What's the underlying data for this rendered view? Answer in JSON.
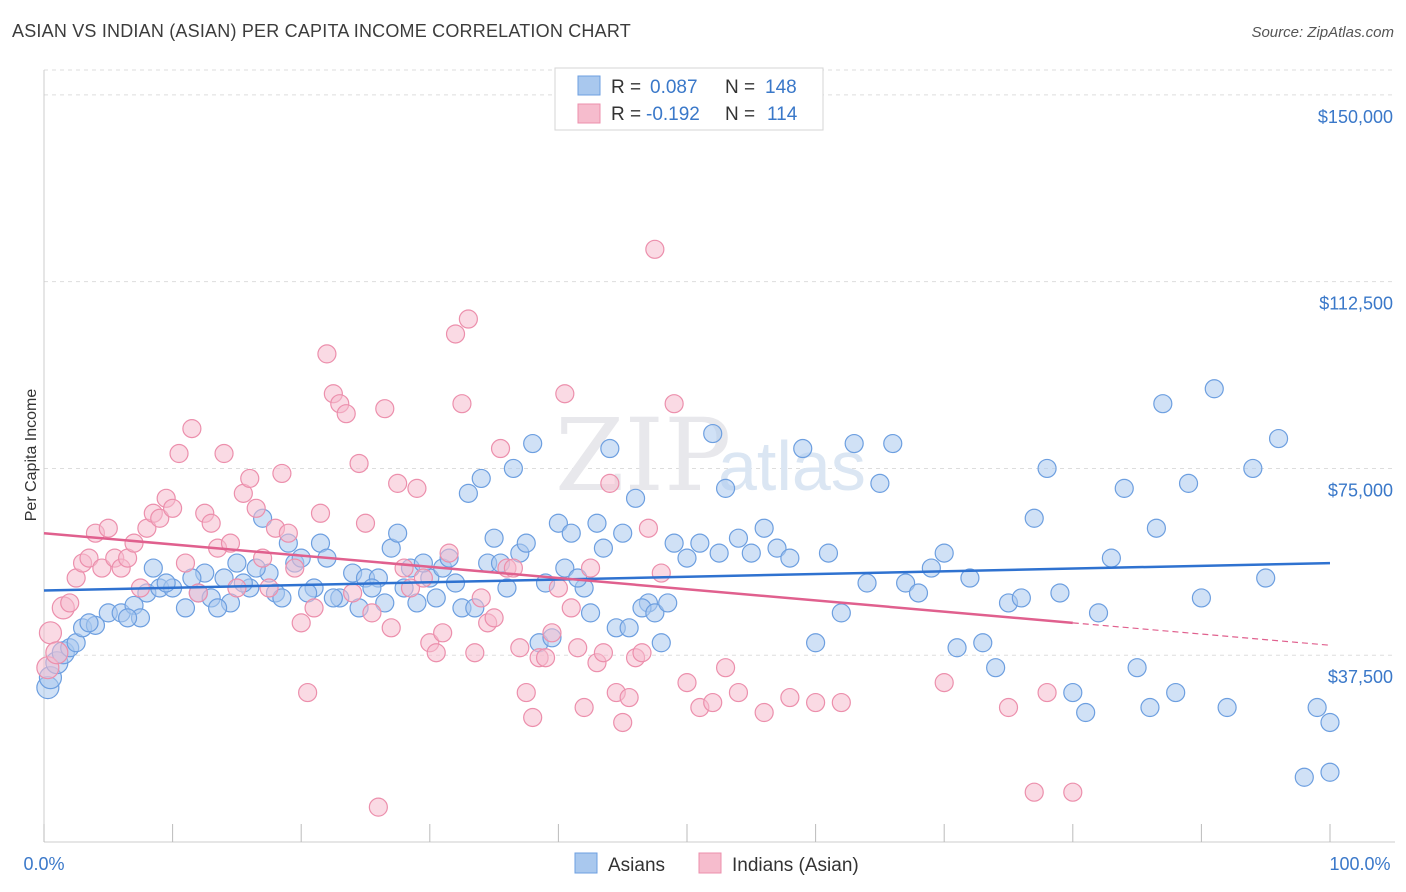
{
  "header": {
    "title": "ASIAN VS INDIAN (ASIAN) PER CAPITA INCOME CORRELATION CHART",
    "source": "Source: ZipAtlas.com"
  },
  "watermark": {
    "zip": "ZIP",
    "atlas": "atlas"
  },
  "legend": {
    "rows": [
      {
        "r_label": "R =",
        "r_value": "0.087",
        "n_label": "N =",
        "n_value": "148"
      },
      {
        "r_label": "R =",
        "r_value": "-0.192",
        "n_label": "N =",
        "n_value": "114"
      }
    ]
  },
  "bottom_legend": [
    "Asians",
    "Indians (Asian)"
  ],
  "colors": {
    "asians_fill": "#a9c8ee",
    "asians_stroke": "#6d9fe0",
    "asians_line": "#2f72d0",
    "indians_fill": "#f6bccd",
    "indians_stroke": "#ec8fac",
    "indians_line": "#e0608e",
    "grid": "#dddddd",
    "tick_text": "#3a78c9"
  },
  "chart_data": {
    "type": "scatter",
    "title": "ASIAN VS INDIAN (ASIAN) PER CAPITA INCOME CORRELATION CHART",
    "xlabel": "",
    "ylabel": "Per Capita Income",
    "xlim": [
      0,
      100
    ],
    "ylim": [
      0,
      155000
    ],
    "x_tick_labels": [
      "0.0%",
      "100.0%"
    ],
    "y_ticks": [
      37500,
      75000,
      112500,
      150000
    ],
    "y_tick_labels": [
      "$37,500",
      "$75,000",
      "$112,500",
      "$150,000"
    ],
    "grid": true,
    "legend_position": "top-center",
    "series": [
      {
        "name": "Asians",
        "r": 0.087,
        "n": 148,
        "trend": {
          "x": [
            0,
            100
          ],
          "y": [
            50500,
            56000
          ]
        },
        "points": [
          [
            0.3,
            31000
          ],
          [
            0.5,
            33000
          ],
          [
            1,
            36000
          ],
          [
            1.5,
            38000
          ],
          [
            2,
            39000
          ],
          [
            2.5,
            40000
          ],
          [
            3,
            43000
          ],
          [
            4,
            43500
          ],
          [
            5,
            46000
          ],
          [
            6,
            46000
          ],
          [
            7,
            47500
          ],
          [
            7.5,
            45000
          ],
          [
            8,
            50000
          ],
          [
            9,
            51000
          ],
          [
            10,
            51000
          ],
          [
            11,
            47000
          ],
          [
            12,
            50000
          ],
          [
            12.5,
            54000
          ],
          [
            13,
            49000
          ],
          [
            14,
            53000
          ],
          [
            14.5,
            48000
          ],
          [
            15,
            56000
          ],
          [
            16,
            51000
          ],
          [
            17,
            65000
          ],
          [
            17.5,
            54000
          ],
          [
            18,
            50000
          ],
          [
            19,
            60000
          ],
          [
            19.5,
            56000
          ],
          [
            20,
            57000
          ],
          [
            21,
            51000
          ],
          [
            21.5,
            60000
          ],
          [
            22,
            57000
          ],
          [
            23,
            49000
          ],
          [
            24,
            54000
          ],
          [
            25,
            53000
          ],
          [
            26,
            53000
          ],
          [
            27,
            59000
          ],
          [
            27.5,
            62000
          ],
          [
            28,
            51000
          ],
          [
            29,
            48000
          ],
          [
            30,
            53000
          ],
          [
            31,
            55000
          ],
          [
            31.5,
            57000
          ],
          [
            32,
            52000
          ],
          [
            33,
            70000
          ],
          [
            34,
            73000
          ],
          [
            34.5,
            56000
          ],
          [
            35,
            61000
          ],
          [
            36,
            51000
          ],
          [
            36.5,
            75000
          ],
          [
            37,
            58000
          ],
          [
            38,
            80000
          ],
          [
            38.5,
            40000
          ],
          [
            39,
            52000
          ],
          [
            40,
            64000
          ],
          [
            41,
            62000
          ],
          [
            42,
            51000
          ],
          [
            43,
            64000
          ],
          [
            43.5,
            59000
          ],
          [
            44,
            79000
          ],
          [
            45,
            62000
          ],
          [
            46,
            69000
          ],
          [
            47,
            48000
          ],
          [
            48,
            40000
          ],
          [
            49,
            60000
          ],
          [
            50,
            57000
          ],
          [
            51,
            60000
          ],
          [
            52,
            82000
          ],
          [
            52.5,
            58000
          ],
          [
            53,
            71000
          ],
          [
            54,
            61000
          ],
          [
            55,
            58000
          ],
          [
            56,
            63000
          ],
          [
            57,
            59000
          ],
          [
            58,
            57000
          ],
          [
            59,
            79000
          ],
          [
            60,
            40000
          ],
          [
            61,
            58000
          ],
          [
            62,
            46000
          ],
          [
            63,
            80000
          ],
          [
            64,
            52000
          ],
          [
            65,
            72000
          ],
          [
            66,
            80000
          ],
          [
            67,
            52000
          ],
          [
            68,
            50000
          ],
          [
            69,
            55000
          ],
          [
            70,
            58000
          ],
          [
            71,
            39000
          ],
          [
            72,
            53000
          ],
          [
            73,
            40000
          ],
          [
            74,
            35000
          ],
          [
            75,
            48000
          ],
          [
            76,
            49000
          ],
          [
            77,
            65000
          ],
          [
            78,
            75000
          ],
          [
            79,
            50000
          ],
          [
            80,
            30000
          ],
          [
            81,
            26000
          ],
          [
            82,
            46000
          ],
          [
            83,
            57000
          ],
          [
            84,
            71000
          ],
          [
            85,
            35000
          ],
          [
            86,
            27000
          ],
          [
            86.5,
            63000
          ],
          [
            87,
            88000
          ],
          [
            88,
            30000
          ],
          [
            89,
            72000
          ],
          [
            90,
            49000
          ],
          [
            91,
            91000
          ],
          [
            92,
            27000
          ],
          [
            94,
            75000
          ],
          [
            95,
            53000
          ],
          [
            96,
            81000
          ],
          [
            98,
            13000
          ],
          [
            99,
            27000
          ],
          [
            100,
            14000
          ],
          [
            100,
            24000
          ],
          [
            3.5,
            44000
          ],
          [
            6.5,
            45000
          ],
          [
            8.5,
            55000
          ],
          [
            9.5,
            52000
          ],
          [
            11.5,
            53000
          ],
          [
            13.5,
            47000
          ],
          [
            15.5,
            52000
          ],
          [
            16.5,
            55000
          ],
          [
            18.5,
            49000
          ],
          [
            20.5,
            50000
          ],
          [
            22.5,
            49000
          ],
          [
            24.5,
            47000
          ],
          [
            25.5,
            51000
          ],
          [
            26.5,
            48000
          ],
          [
            28.5,
            55000
          ],
          [
            29.5,
            56000
          ],
          [
            30.5,
            49000
          ],
          [
            32.5,
            47000
          ],
          [
            33.5,
            47000
          ],
          [
            35.5,
            56000
          ],
          [
            37.5,
            60000
          ],
          [
            39.5,
            41000
          ],
          [
            40.5,
            55000
          ],
          [
            41.5,
            53000
          ],
          [
            42.5,
            46000
          ],
          [
            44.5,
            43000
          ],
          [
            45.5,
            43000
          ],
          [
            46.5,
            47000
          ],
          [
            47.5,
            46000
          ],
          [
            48.5,
            48000
          ]
        ]
      },
      {
        "name": "Indians (Asian)",
        "r": -0.192,
        "n": 114,
        "trend": {
          "x": [
            0,
            80
          ],
          "y": [
            62000,
            44000
          ]
        },
        "trend_dashed": {
          "x": [
            80,
            100
          ],
          "y": [
            44000,
            39500
          ]
        },
        "points": [
          [
            0.3,
            35000
          ],
          [
            0.5,
            42000
          ],
          [
            1,
            38000
          ],
          [
            1.5,
            47000
          ],
          [
            2,
            48000
          ],
          [
            2.5,
            53000
          ],
          [
            3,
            56000
          ],
          [
            3.5,
            57000
          ],
          [
            4,
            62000
          ],
          [
            4.5,
            55000
          ],
          [
            5,
            63000
          ],
          [
            5.5,
            57000
          ],
          [
            6,
            55000
          ],
          [
            6.5,
            57000
          ],
          [
            7,
            60000
          ],
          [
            7.5,
            51000
          ],
          [
            8,
            63000
          ],
          [
            8.5,
            66000
          ],
          [
            9,
            65000
          ],
          [
            9.5,
            69000
          ],
          [
            10,
            67000
          ],
          [
            10.5,
            78000
          ],
          [
            11,
            56000
          ],
          [
            11.5,
            83000
          ],
          [
            12,
            50000
          ],
          [
            12.5,
            66000
          ],
          [
            13,
            64000
          ],
          [
            13.5,
            59000
          ],
          [
            14,
            78000
          ],
          [
            14.5,
            60000
          ],
          [
            15,
            51000
          ],
          [
            15.5,
            70000
          ],
          [
            16,
            73000
          ],
          [
            16.5,
            67000
          ],
          [
            17,
            57000
          ],
          [
            17.5,
            51000
          ],
          [
            18,
            63000
          ],
          [
            18.5,
            74000
          ],
          [
            19,
            62000
          ],
          [
            19.5,
            55000
          ],
          [
            20,
            44000
          ],
          [
            20.5,
            30000
          ],
          [
            21,
            47000
          ],
          [
            21.5,
            66000
          ],
          [
            22,
            98000
          ],
          [
            22.5,
            90000
          ],
          [
            23,
            88000
          ],
          [
            23.5,
            86000
          ],
          [
            24,
            50000
          ],
          [
            24.5,
            76000
          ],
          [
            25,
            64000
          ],
          [
            25.5,
            46000
          ],
          [
            26,
            7000
          ],
          [
            26.5,
            87000
          ],
          [
            27,
            43000
          ],
          [
            27.5,
            72000
          ],
          [
            28,
            55000
          ],
          [
            28.5,
            51000
          ],
          [
            29,
            71000
          ],
          [
            29.5,
            53000
          ],
          [
            30,
            40000
          ],
          [
            30.5,
            38000
          ],
          [
            31,
            42000
          ],
          [
            31.5,
            58000
          ],
          [
            32,
            102000
          ],
          [
            32.5,
            88000
          ],
          [
            33,
            105000
          ],
          [
            33.5,
            38000
          ],
          [
            34,
            49000
          ],
          [
            34.5,
            44000
          ],
          [
            35,
            45000
          ],
          [
            35.5,
            79000
          ],
          [
            36,
            55000
          ],
          [
            36.5,
            55000
          ],
          [
            37,
            39000
          ],
          [
            37.5,
            30000
          ],
          [
            38,
            25000
          ],
          [
            38.5,
            37000
          ],
          [
            39,
            37000
          ],
          [
            39.5,
            42000
          ],
          [
            40,
            51000
          ],
          [
            40.5,
            90000
          ],
          [
            41,
            47000
          ],
          [
            41.5,
            39000
          ],
          [
            42,
            27000
          ],
          [
            42.5,
            55000
          ],
          [
            43,
            36000
          ],
          [
            43.5,
            38000
          ],
          [
            44,
            72000
          ],
          [
            44.5,
            30000
          ],
          [
            45,
            24000
          ],
          [
            45.5,
            29000
          ],
          [
            46,
            37000
          ],
          [
            46.5,
            38000
          ],
          [
            47,
            63000
          ],
          [
            47.5,
            119000
          ],
          [
            48,
            54000
          ],
          [
            49,
            88000
          ],
          [
            50,
            32000
          ],
          [
            51,
            27000
          ],
          [
            52,
            28000
          ],
          [
            53,
            35000
          ],
          [
            54,
            30000
          ],
          [
            56,
            26000
          ],
          [
            58,
            29000
          ],
          [
            60,
            28000
          ],
          [
            62,
            28000
          ],
          [
            70,
            32000
          ],
          [
            75,
            27000
          ],
          [
            78,
            30000
          ],
          [
            80,
            10000
          ],
          [
            77,
            10000
          ]
        ]
      }
    ]
  }
}
